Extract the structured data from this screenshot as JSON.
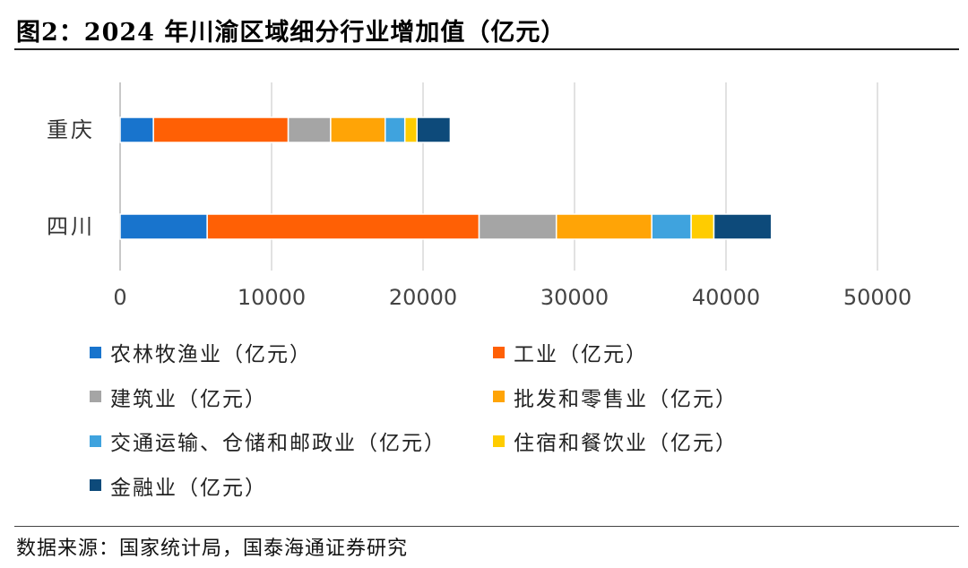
{
  "title": "图2：2024 年川渝区域细分行业增加值（亿元）",
  "source": "数据来源：国家统计局，国泰海通证券研究",
  "chart_data": {
    "type": "stacked-bar-horizontal",
    "categories": [
      "重庆",
      "四川"
    ],
    "xlim": [
      0,
      50000
    ],
    "xticks": [
      0,
      10000,
      20000,
      30000,
      40000,
      50000
    ],
    "grid": true,
    "legend": "bottom",
    "series": [
      {
        "name": "农林牧渔业（亿元）",
        "color": "#1874CD",
        "values": [
          2200,
          5750
        ]
      },
      {
        "name": "工业（亿元）",
        "color": "#FF6005",
        "values": [
          8900,
          17950
        ]
      },
      {
        "name": "建筑业（亿元）",
        "color": "#A5A5A5",
        "values": [
          2800,
          5100
        ]
      },
      {
        "name": "批发和零售业（亿元）",
        "color": "#FFA406",
        "values": [
          3600,
          6300
        ]
      },
      {
        "name": "交通运输、仓储和邮政业（亿元）",
        "color": "#3FA3DE",
        "values": [
          1300,
          2600
        ]
      },
      {
        "name": "住宿和餐饮业（亿元）",
        "color": "#FFCC00",
        "values": [
          800,
          1500
        ]
      },
      {
        "name": "金融业（亿元）",
        "color": "#0D4A7A",
        "values": [
          2200,
          3800
        ]
      }
    ]
  }
}
